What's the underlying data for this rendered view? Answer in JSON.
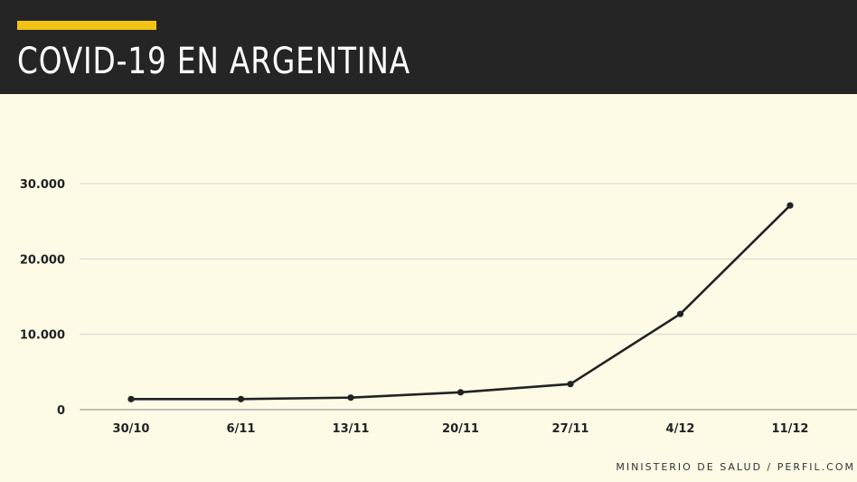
{
  "header": {
    "title": "COVID-19 EN ARGENTINA",
    "accent_color": "#f2c315",
    "background_color": "#252525"
  },
  "source": "MINISTERIO DE SALUD / PERFIL.COM",
  "chart_data": {
    "type": "line",
    "title": "COVID-19 EN ARGENTINA",
    "categories": [
      "30/10",
      "6/11",
      "13/11",
      "20/11",
      "27/11",
      "4/12",
      "11/12"
    ],
    "series": [
      {
        "values": [
          1400,
          1400,
          1600,
          2300,
          3400,
          12700,
          27100
        ],
        "color": "#222222"
      }
    ],
    "y_ticks": [
      {
        "value": 0,
        "label": "0"
      },
      {
        "value": 10000,
        "label": "10.000"
      },
      {
        "value": 20000,
        "label": "20.000"
      },
      {
        "value": 30000,
        "label": "30.000"
      }
    ],
    "ylim": [
      0,
      30000
    ],
    "xlabel": "",
    "ylabel": "",
    "grid": true,
    "legend": "none"
  }
}
